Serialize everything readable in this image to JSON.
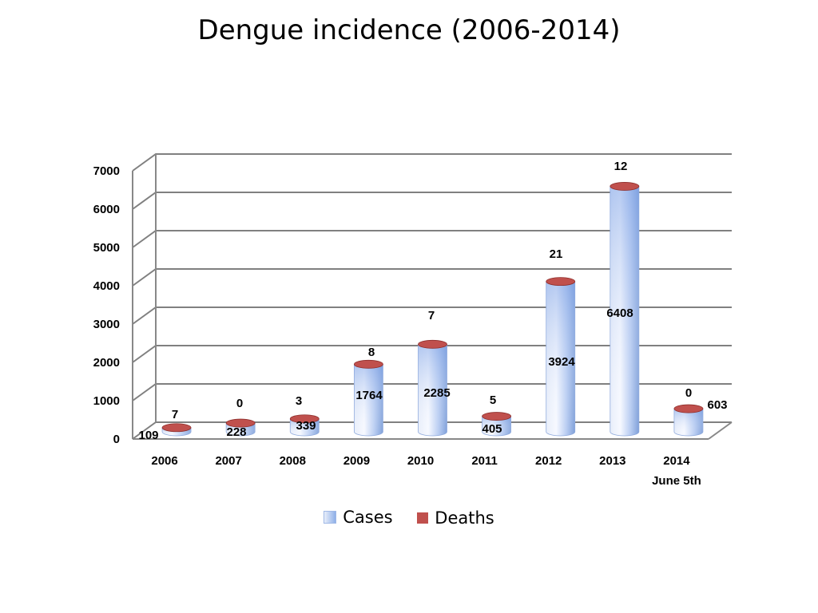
{
  "chart_data": {
    "type": "bar",
    "title": "Dengue incidence (2006-2014)",
    "categories": [
      "2006",
      "2007",
      "2008",
      "2009",
      "2010",
      "2011",
      "2012",
      "2013",
      "2014"
    ],
    "category_sublabels": [
      "",
      "",
      "",
      "",
      "",
      "",
      "",
      "",
      "June 5th"
    ],
    "series": [
      {
        "name": "Cases",
        "values": [
          109,
          228,
          339,
          1764,
          2285,
          405,
          3924,
          6408,
          603
        ],
        "color": "#8fb0e8"
      },
      {
        "name": "Deaths",
        "values": [
          7,
          0,
          3,
          8,
          7,
          5,
          21,
          12,
          0
        ],
        "color": "#c0504d"
      }
    ],
    "yticks": [
      0,
      1000,
      2000,
      3000,
      4000,
      5000,
      6000,
      7000
    ],
    "ylim": [
      0,
      7000
    ],
    "grid": true,
    "legend": "bottom",
    "xlabel": "",
    "ylabel": ""
  }
}
